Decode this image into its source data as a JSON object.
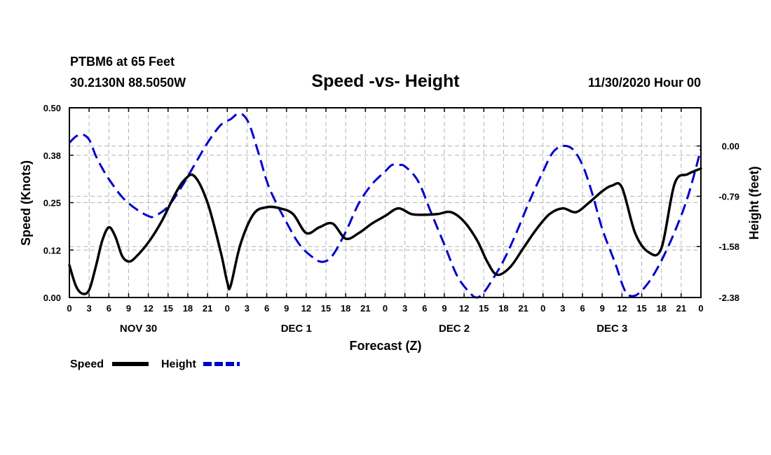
{
  "header": {
    "station": "PTBM6 at 65 Feet",
    "location": "30.2130N 88.5050W",
    "datetime": "11/30/2020 Hour 00"
  },
  "chart_data": {
    "type": "line",
    "title": "Speed -vs- Height",
    "xlabel": "Forecast (Z)",
    "ylabel_left": "Speed (Knots)",
    "ylabel_right": "Height (feet)",
    "x_range": [
      0,
      96
    ],
    "x_tick_labels": [
      "0",
      "3",
      "6",
      "9",
      "12",
      "15",
      "18",
      "21",
      "0",
      "3",
      "6",
      "9",
      "12",
      "15",
      "18",
      "21",
      "0",
      "3",
      "6",
      "9",
      "12",
      "15",
      "18",
      "21",
      "0",
      "3",
      "6",
      "9",
      "12",
      "15",
      "18",
      "21",
      "0"
    ],
    "day_labels": [
      {
        "label": "NOV 30",
        "hour": 10.5
      },
      {
        "label": "DEC 1",
        "hour": 34.5
      },
      {
        "label": "DEC 2",
        "hour": 58.5
      },
      {
        "label": "DEC 3",
        "hour": 82.5
      }
    ],
    "ylim_left": [
      0,
      0.5
    ],
    "left_ticks": [
      "0.00",
      "0.12",
      "0.25",
      "0.38",
      "0.50"
    ],
    "left_tick_values": [
      0,
      0.125,
      0.25,
      0.375,
      0.5
    ],
    "ylim_right": [
      -2.38,
      0.6
    ],
    "right_ticks": [
      "0.00",
      "-0.79",
      "-1.58",
      "-2.38"
    ],
    "right_tick_values": [
      0,
      -0.79,
      -1.58,
      -2.38
    ],
    "grid": true,
    "series": [
      {
        "name": "Speed",
        "axis": "left",
        "color": "#000000",
        "style": "solid",
        "x": [
          0,
          1,
          2,
          3,
          4,
          5,
          6,
          7,
          8,
          9,
          10,
          12,
          14,
          16,
          17.5,
          19,
          21,
          23,
          24,
          24.5,
          26,
          28,
          30,
          32,
          34,
          36,
          38,
          40,
          42,
          44,
          46,
          48,
          50,
          52,
          54,
          56,
          58,
          60,
          62,
          63.5,
          65,
          67,
          69,
          71,
          73,
          75,
          77,
          79,
          81,
          82.5,
          84,
          86,
          88,
          90,
          92,
          94,
          96
        ],
        "values": [
          0.085,
          0.03,
          0.01,
          0.02,
          0.08,
          0.15,
          0.185,
          0.16,
          0.11,
          0.095,
          0.105,
          0.145,
          0.2,
          0.27,
          0.31,
          0.32,
          0.25,
          0.12,
          0.04,
          0.03,
          0.14,
          0.22,
          0.238,
          0.235,
          0.22,
          0.17,
          0.185,
          0.195,
          0.155,
          0.17,
          0.195,
          0.215,
          0.235,
          0.22,
          0.218,
          0.22,
          0.225,
          0.2,
          0.15,
          0.095,
          0.06,
          0.08,
          0.13,
          0.18,
          0.22,
          0.235,
          0.225,
          0.25,
          0.28,
          0.295,
          0.29,
          0.17,
          0.12,
          0.13,
          0.3,
          0.325,
          0.34
        ]
      },
      {
        "name": "Height",
        "axis": "right",
        "color": "#0000cc",
        "style": "dashed",
        "x": [
          0,
          1,
          2,
          3,
          4,
          5,
          6,
          8,
          10,
          12,
          13,
          15,
          17,
          19,
          21,
          23,
          24.5,
          25.5,
          26.5,
          27.5,
          29,
          30,
          31,
          33,
          35,
          37,
          38.5,
          40,
          42,
          44,
          46,
          48,
          49,
          50,
          51,
          53,
          55,
          57,
          59,
          61,
          62,
          63,
          64,
          66,
          68,
          70,
          72,
          73.5,
          75,
          76.5,
          78,
          79.5,
          81,
          83,
          84.5,
          86,
          88,
          90,
          92,
          94,
          96
        ],
        "values": [
          0.05,
          0.15,
          0.18,
          0.1,
          -0.15,
          -0.35,
          -0.52,
          -0.8,
          -0.98,
          -1.1,
          -1.1,
          -0.95,
          -0.65,
          -0.3,
          0.05,
          0.33,
          0.42,
          0.5,
          0.48,
          0.3,
          -0.2,
          -0.55,
          -0.8,
          -1.2,
          -1.55,
          -1.75,
          -1.82,
          -1.72,
          -1.35,
          -0.9,
          -0.6,
          -0.4,
          -0.3,
          -0.3,
          -0.32,
          -0.55,
          -1.05,
          -1.55,
          -2.05,
          -2.32,
          -2.38,
          -2.3,
          -2.15,
          -1.8,
          -1.35,
          -0.85,
          -0.4,
          -0.1,
          0.0,
          -0.05,
          -0.3,
          -0.75,
          -1.3,
          -1.85,
          -2.28,
          -2.35,
          -2.15,
          -1.8,
          -1.35,
          -0.8,
          -0.05
        ]
      }
    ]
  },
  "legend": [
    {
      "label": "Speed",
      "color": "#000000",
      "style": "solid"
    },
    {
      "label": "Height",
      "color": "#0000cc",
      "style": "dashed"
    }
  ]
}
